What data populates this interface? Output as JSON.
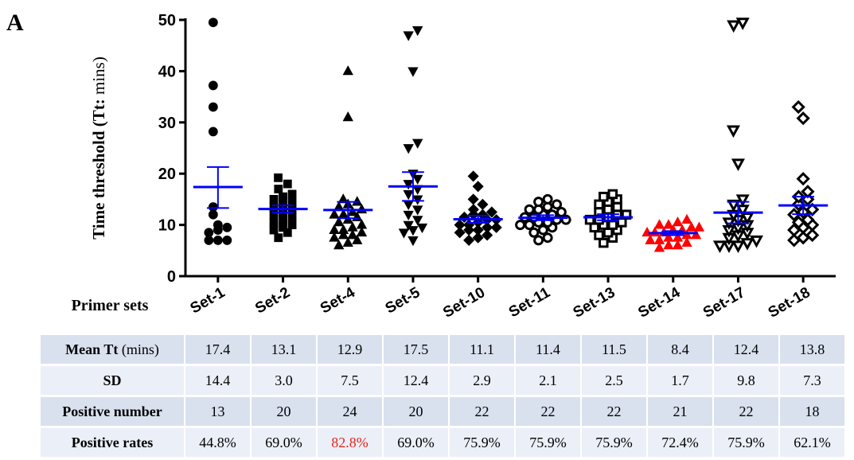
{
  "panel_label": "A",
  "chart_data": {
    "type": "scatter",
    "ylabel_main": "Time threshold (",
    "ylabel_bold": "Tt:",
    "ylabel_unit": " mins)",
    "xlabel": "Primer sets",
    "ylim": [
      0,
      50
    ],
    "yticks": [
      0,
      10,
      20,
      30,
      40,
      50
    ],
    "grid": false,
    "categories": [
      "Set-1",
      "Set-2",
      "Set-4",
      "Set-5",
      "Set-10",
      "Set-11",
      "Set-13",
      "Set-14",
      "Set-17",
      "Set-18"
    ],
    "markers": [
      "circle",
      "square",
      "triangle",
      "triangle-down",
      "diamond",
      "circle-open",
      "square-open",
      "triangle",
      "triangle-down-open",
      "diamond-open"
    ],
    "colors": {
      "points": "#000000",
      "highlight": "#ff0000",
      "mean_bar": "#0000ff"
    },
    "highlight_category": "Set-14",
    "means": [
      17.4,
      13.1,
      12.9,
      17.5,
      11.1,
      11.4,
      11.5,
      8.4,
      12.4,
      13.8
    ],
    "error_upper": [
      21.3,
      13.8,
      14.5,
      20.3,
      11.8,
      11.9,
      12.1,
      8.8,
      14.5,
      15.5
    ],
    "error_lower": [
      13.3,
      12.4,
      11.3,
      14.7,
      10.4,
      10.9,
      10.9,
      8.0,
      10.3,
      12.1
    ],
    "points": [
      [
        49.5,
        37.2,
        33.0,
        28.2,
        13.5,
        12.0,
        10.0,
        9.0,
        9.5,
        7.0,
        7.0,
        8.5,
        7.0
      ],
      [
        19.2,
        18.0,
        17.0,
        16.0,
        15.5,
        15.0,
        14.5,
        14.0,
        13.5,
        13.0,
        12.5,
        12.0,
        11.5,
        11.0,
        10.5,
        10.0,
        9.5,
        9.0,
        8.5,
        7.5
      ],
      [
        40.0,
        31.0,
        15.0,
        14.5,
        14.0,
        13.5,
        13.0,
        12.5,
        12.0,
        12.0,
        11.5,
        11.0,
        10.5,
        10.0,
        9.5,
        9.0,
        9.0,
        8.5,
        8.0,
        8.0,
        7.5,
        7.0,
        6.5,
        6.0
      ],
      [
        48.0,
        47.0,
        40.0,
        26.0,
        25.0,
        20.0,
        19.0,
        18.0,
        17.0,
        16.0,
        15.0,
        14.0,
        13.0,
        12.0,
        11.0,
        10.0,
        9.5,
        9.0,
        8.5,
        7.0
      ],
      [
        19.5,
        17.5,
        15.0,
        14.0,
        13.0,
        12.5,
        12.0,
        12.0,
        11.5,
        11.0,
        11.0,
        10.5,
        10.0,
        10.0,
        9.5,
        9.5,
        9.0,
        9.0,
        8.5,
        8.0,
        7.5,
        7.0
      ],
      [
        15.0,
        14.5,
        14.0,
        13.5,
        13.0,
        13.0,
        12.5,
        12.0,
        12.0,
        11.5,
        11.5,
        11.0,
        11.0,
        10.5,
        10.5,
        10.0,
        10.0,
        9.5,
        9.0,
        8.5,
        7.5,
        7.0
      ],
      [
        16.0,
        15.5,
        15.0,
        14.5,
        14.0,
        13.5,
        13.0,
        12.5,
        12.0,
        12.0,
        11.5,
        11.0,
        11.0,
        10.5,
        10.0,
        10.0,
        9.5,
        9.0,
        8.5,
        8.0,
        7.5,
        6.5
      ],
      [
        11.0,
        10.5,
        10.0,
        10.0,
        9.5,
        9.5,
        9.0,
        9.0,
        8.5,
        8.5,
        8.5,
        8.0,
        8.0,
        7.5,
        7.5,
        7.0,
        7.0,
        6.5,
        6.0,
        6.0,
        5.5
      ],
      [
        49.5,
        49.0,
        28.5,
        22.0,
        15.0,
        14.0,
        13.0,
        12.0,
        11.5,
        11.0,
        10.5,
        10.0,
        9.5,
        9.0,
        8.5,
        8.0,
        7.5,
        7.0,
        6.5,
        6.0,
        6.0,
        6.0
      ],
      [
        33.0,
        30.8,
        19.0,
        16.5,
        15.5,
        15.0,
        14.0,
        13.0,
        12.5,
        12.0,
        11.0,
        10.5,
        10.0,
        9.5,
        9.0,
        8.0,
        7.5,
        7.0
      ]
    ]
  },
  "table": {
    "rows": [
      {
        "label": "Mean Tt",
        "unit": " (mins)",
        "values": [
          "17.4",
          "13.1",
          "12.9",
          "17.5",
          "11.1",
          "11.4",
          "11.5",
          "8.4",
          "12.4",
          "13.8"
        ]
      },
      {
        "label": "SD",
        "unit": "",
        "values": [
          "14.4",
          "3.0",
          "7.5",
          "12.4",
          "2.9",
          "2.1",
          "2.5",
          "1.7",
          "9.8",
          "7.3"
        ]
      },
      {
        "label": "Positive number",
        "unit": "",
        "values": [
          "13",
          "20",
          "24",
          "20",
          "22",
          "22",
          "22",
          "21",
          "22",
          "18"
        ]
      },
      {
        "label": "Positive rates",
        "unit": "",
        "values": [
          "44.8%",
          "69.0%",
          "82.8%",
          "69.0%",
          "75.9%",
          "75.9%",
          "75.9%",
          "72.4%",
          "75.9%",
          "62.1%"
        ],
        "highlight_index": 2
      }
    ]
  }
}
